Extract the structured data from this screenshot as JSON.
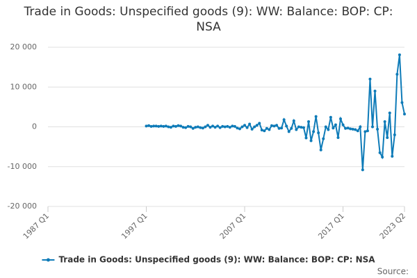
{
  "chart_data": {
    "type": "line",
    "title": "Trade in Goods: Unspecified goods (9): WW: Balance: BOP: CP: NSA",
    "source": "Source:",
    "categories": [
      "1987 Q1",
      null,
      null,
      null,
      null,
      null,
      null,
      null,
      null,
      null,
      null,
      null,
      null,
      null,
      null,
      null,
      null,
      null,
      null,
      null,
      null,
      null,
      null,
      null,
      null,
      null,
      null,
      null,
      null,
      null,
      null,
      null,
      null,
      null,
      null,
      null,
      null,
      null,
      null,
      null,
      "1997 Q1",
      null,
      null,
      null,
      null,
      null,
      null,
      null,
      null,
      null,
      null,
      null,
      null,
      null,
      null,
      null,
      null,
      null,
      null,
      null,
      null,
      null,
      null,
      null,
      null,
      null,
      null,
      null,
      null,
      null,
      null,
      null,
      null,
      null,
      null,
      null,
      null,
      null,
      null,
      null,
      "2007 Q1",
      null,
      null,
      null,
      null,
      null,
      null,
      null,
      null,
      null,
      null,
      null,
      null,
      null,
      null,
      null,
      null,
      null,
      null,
      null,
      null,
      null,
      null,
      null,
      null,
      null,
      null,
      null,
      null,
      null,
      null,
      null,
      null,
      null,
      null,
      null,
      null,
      null,
      null,
      null,
      "2017 Q1",
      null,
      null,
      null,
      null,
      null,
      null,
      null,
      null,
      null,
      null,
      null,
      null,
      null,
      null,
      null,
      null,
      null,
      null,
      null,
      null,
      null,
      null,
      null,
      null,
      "2023 Q2"
    ],
    "series": [
      {
        "name": "Trade in Goods: Unspecified goods (9): WW: Balance: BOP: CP: NSA",
        "color": "#0e7bb8",
        "values": [
          null,
          null,
          null,
          null,
          null,
          null,
          null,
          null,
          null,
          null,
          null,
          null,
          null,
          null,
          null,
          null,
          null,
          null,
          null,
          null,
          null,
          null,
          null,
          null,
          null,
          null,
          null,
          null,
          null,
          null,
          null,
          null,
          null,
          null,
          null,
          null,
          null,
          null,
          null,
          null,
          200,
          300,
          100,
          200,
          200,
          100,
          200,
          100,
          200,
          0,
          -100,
          200,
          100,
          300,
          200,
          -100,
          -200,
          100,
          0,
          -400,
          -100,
          0,
          -200,
          -300,
          0,
          400,
          -100,
          200,
          -100,
          200,
          -200,
          100,
          0,
          100,
          -100,
          200,
          100,
          -300,
          -500,
          0,
          400,
          -200,
          700,
          -600,
          0,
          400,
          900,
          -800,
          -1000,
          -400,
          -700,
          300,
          200,
          400,
          -400,
          -300,
          1800,
          200,
          -1200,
          -400,
          1500,
          -700,
          0,
          -100,
          -200,
          -2800,
          1300,
          -3500,
          -1200,
          2600,
          -1500,
          -5800,
          -3000,
          0,
          -700,
          2400,
          -300,
          500,
          -2700,
          2000,
          500,
          -400,
          -300,
          -500,
          -600,
          -700,
          -1000,
          0,
          -10800,
          -1200,
          -1000,
          12000,
          0,
          9000,
          -600,
          -6500,
          -7600,
          1300,
          -2700,
          3500,
          -7400,
          -2000,
          13200,
          18100,
          6100,
          3200
        ]
      }
    ],
    "ylim": [
      -20000,
      20000
    ],
    "yticks": [
      {
        "value": -20000,
        "label": "-20 000"
      },
      {
        "value": -10000,
        "label": "-10 000"
      },
      0,
      {
        "value": 10000,
        "label": "10 000"
      },
      {
        "value": 20000,
        "label": "20 000"
      }
    ],
    "grid": true,
    "legend": "bottom"
  }
}
